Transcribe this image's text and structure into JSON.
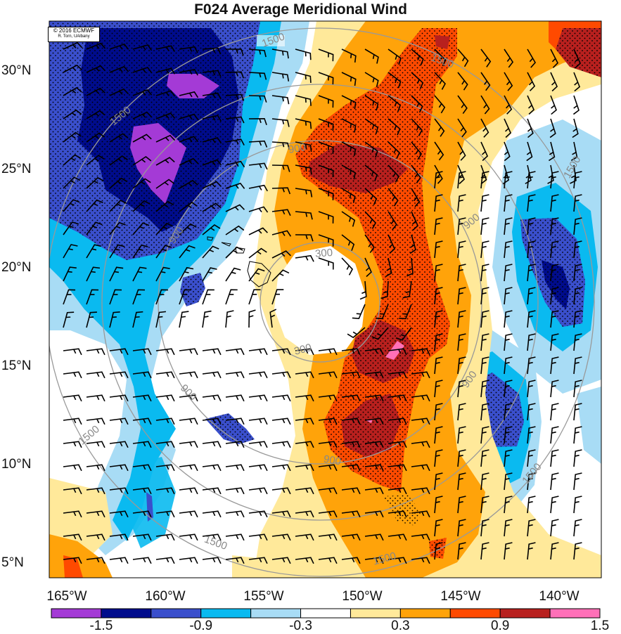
{
  "title": "F024 Average Meridional Wind",
  "credit": {
    "line1": "© 2016 ECMWF",
    "line2": "R. Torn, UAlbany"
  },
  "lat_labels": [
    "30°N",
    "25°N",
    "20°N",
    "15°N",
    "10°N",
    "5°N"
  ],
  "lon_labels": [
    "165°W",
    "160°W",
    "155°W",
    "150°W",
    "145°W",
    "140°W"
  ],
  "contour_labels": [
    "1500",
    "900",
    "300"
  ],
  "colorbar": {
    "colors": [
      "#a43ad6",
      "#000c8c",
      "#3a4fcc",
      "#0abaf0",
      "#a8dcf5",
      "#ffffff",
      "#ffe99a",
      "#ffa30a",
      "#ff4a00",
      "#b8201e",
      "#ff70b8"
    ],
    "labels": [
      "-1.5",
      "-0.9",
      "-0.3",
      "0.3",
      "0.9",
      "1.5"
    ]
  },
  "palette": {
    "neg_strong": "#a43ad6",
    "neg_dark": "#000c8c",
    "neg_mid": "#3a4fcc",
    "neg_light": "#0abaf0",
    "neg_pale": "#a8dcf5",
    "pos_pale": "#ffe99a",
    "pos_light": "#ffa30a",
    "pos_mid": "#ff4a00",
    "pos_dark": "#b8201e",
    "pos_strong": "#ff70b8",
    "contour": "#999999"
  }
}
